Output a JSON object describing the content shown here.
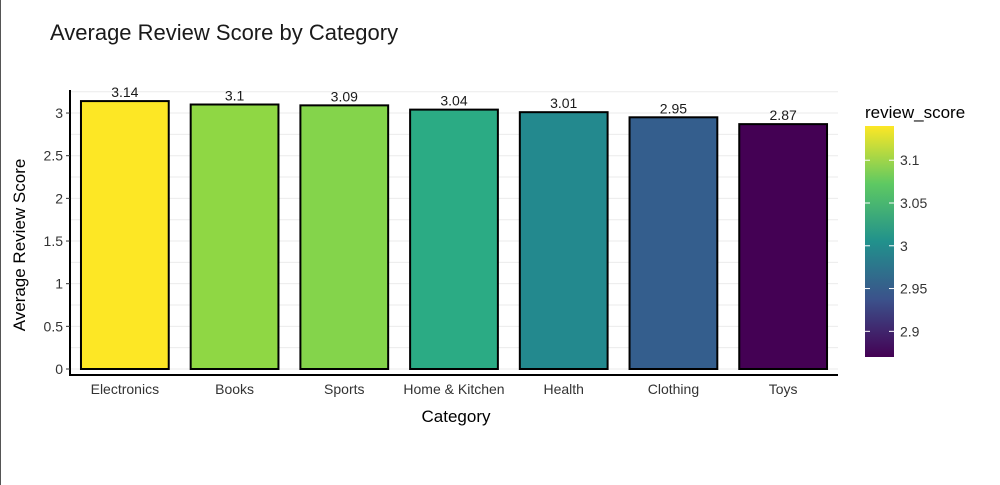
{
  "chart_data": {
    "type": "bar",
    "title": "Average Review Score by Category",
    "xlabel": "Category",
    "ylabel": "Average Review Score",
    "categories": [
      "Electronics",
      "Books",
      "Sports",
      "Home & Kitchen",
      "Health",
      "Clothing",
      "Toys"
    ],
    "values": [
      3.14,
      3.1,
      3.09,
      3.04,
      3.01,
      2.95,
      2.87
    ],
    "data_labels": [
      "3.14",
      "3.1",
      "3.09",
      "3.04",
      "3.01",
      "2.95",
      "2.87"
    ],
    "yticks": [
      0,
      0.5,
      1,
      1.5,
      2,
      2.5,
      3
    ],
    "ytick_labels": [
      "0",
      "0.5",
      "1",
      "1.5",
      "2",
      "2.5",
      "3"
    ],
    "ylim": [
      0,
      3.27
    ],
    "grid": true,
    "fill_scale": "viridis",
    "legend": {
      "title": "review_score",
      "placement": "right",
      "range": [
        2.87,
        3.14
      ],
      "ticks": [
        2.9,
        2.95,
        3,
        3.05,
        3.1
      ],
      "tick_labels": [
        "2.9",
        "2.95",
        "3",
        "3.05",
        "3.1"
      ]
    },
    "bar_colors": [
      "#fde725",
      "#8fd744",
      "#84d44b",
      "#2bab84",
      "#23898e",
      "#345e8d",
      "#440154"
    ],
    "bar_outline_color": "#000000",
    "gridline_color": "#ebebeb"
  }
}
